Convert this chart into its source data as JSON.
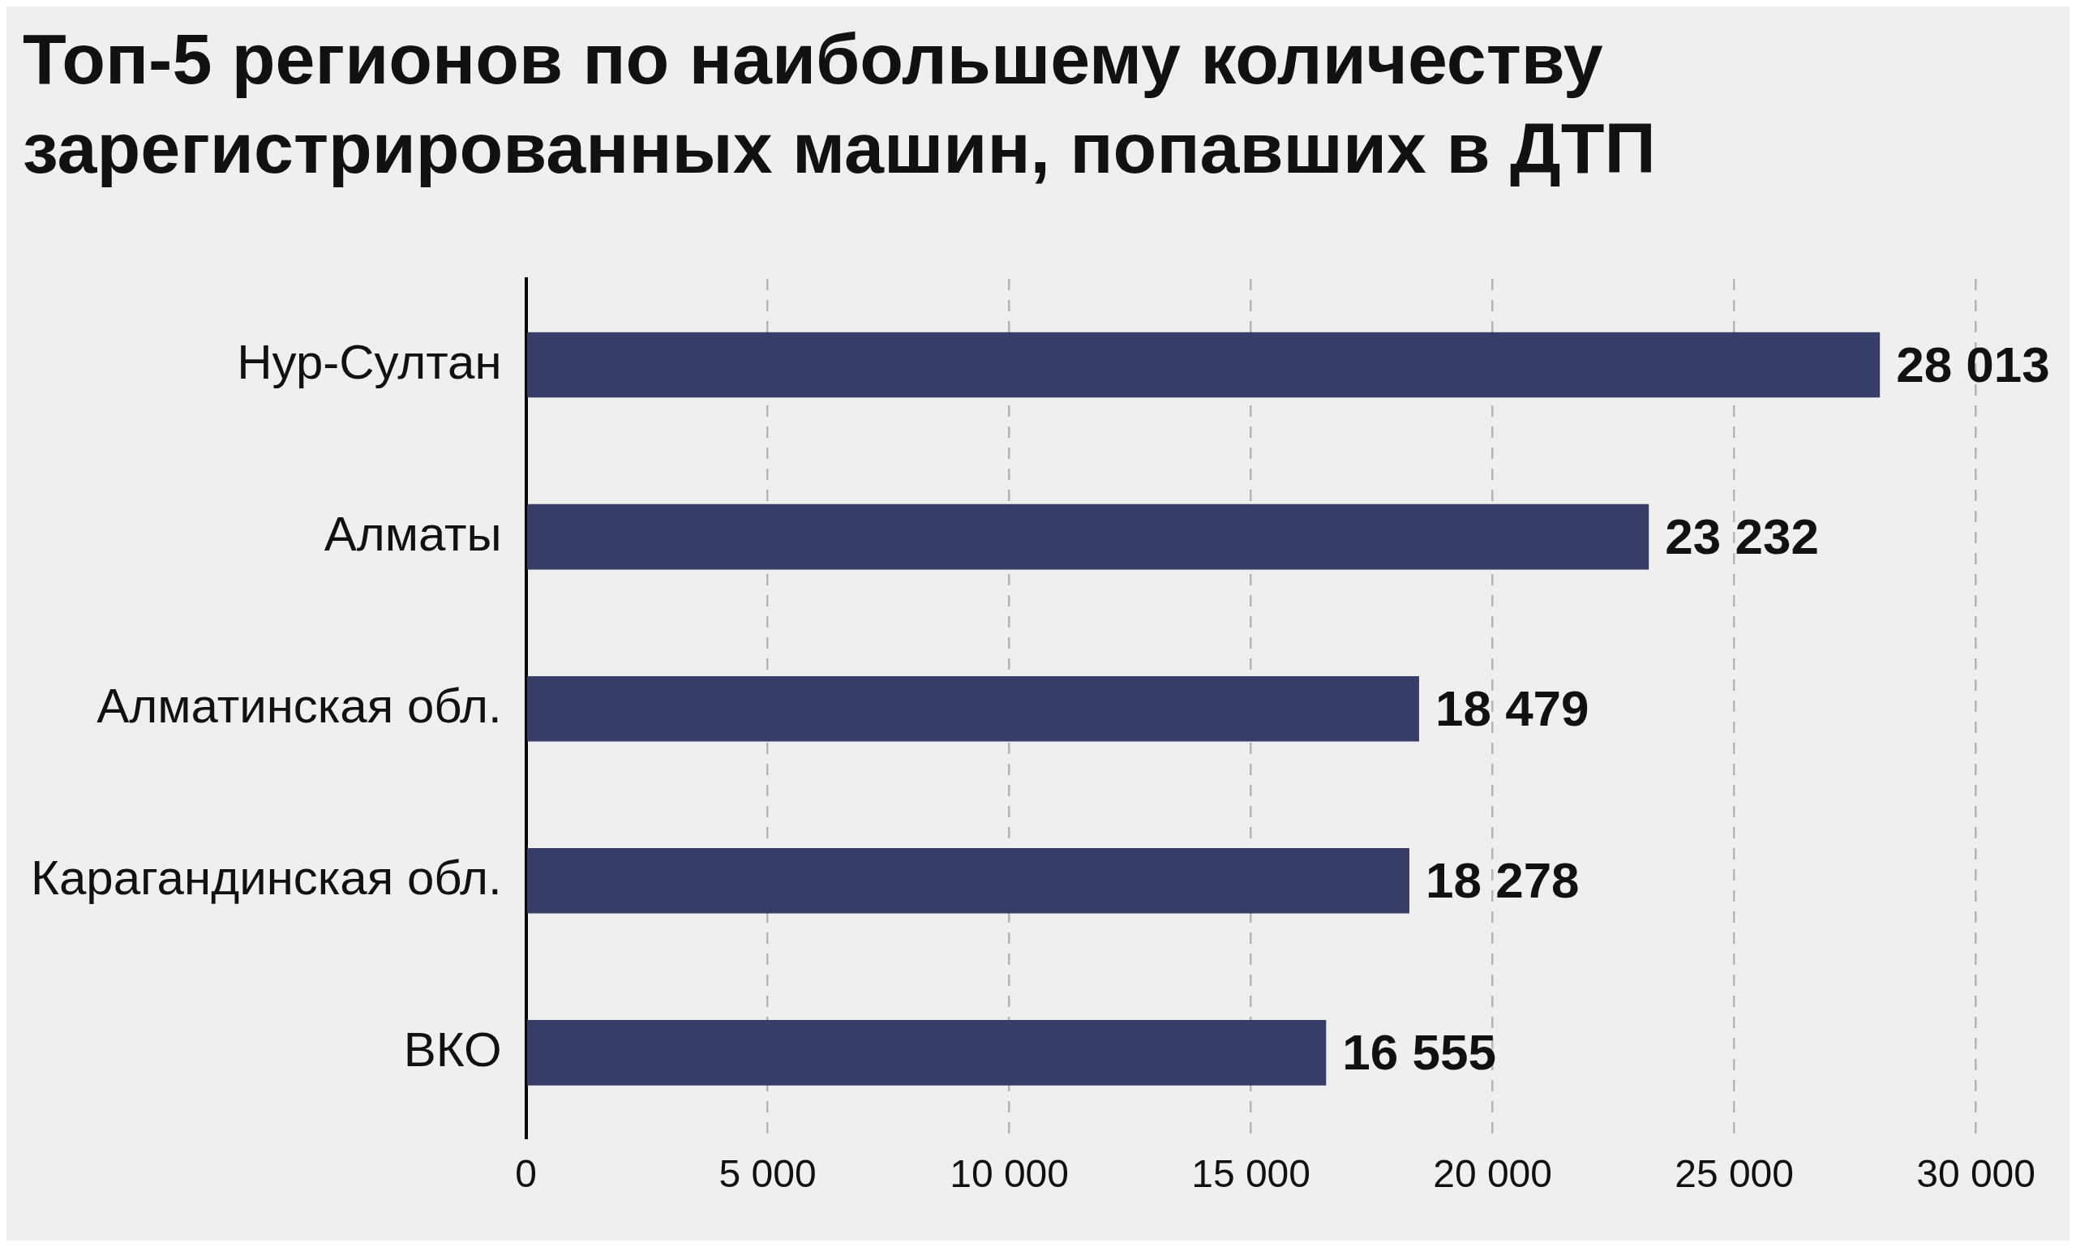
{
  "chart_data": {
    "type": "bar",
    "orientation": "horizontal",
    "title": "Топ-5 регионов по наибольшему количеству зарегистрированных машин, попавших в ДТП",
    "categories": [
      "Нур-Султан",
      "Алматы",
      "Алматинская обл.",
      "Карагандинская обл.",
      "ВКО"
    ],
    "values": [
      28013,
      23232,
      18479,
      18278,
      16555
    ],
    "value_labels": [
      "28 013",
      "23 232",
      "18 479",
      "18 278",
      "16 555"
    ],
    "color": "#363d66",
    "xlim": [
      0,
      30000
    ],
    "xticks": [
      0,
      {
        "value": 5000,
        "label": "5 000"
      },
      {
        "value": 10000,
        "label": "10 000"
      },
      {
        "value": 15000,
        "label": "15 000"
      },
      {
        "value": 20000,
        "label": "20 000"
      },
      {
        "value": 25000,
        "label": "25 000"
      },
      {
        "value": 30000,
        "label": "30 000"
      }
    ],
    "grid": "x",
    "legend": false
  }
}
